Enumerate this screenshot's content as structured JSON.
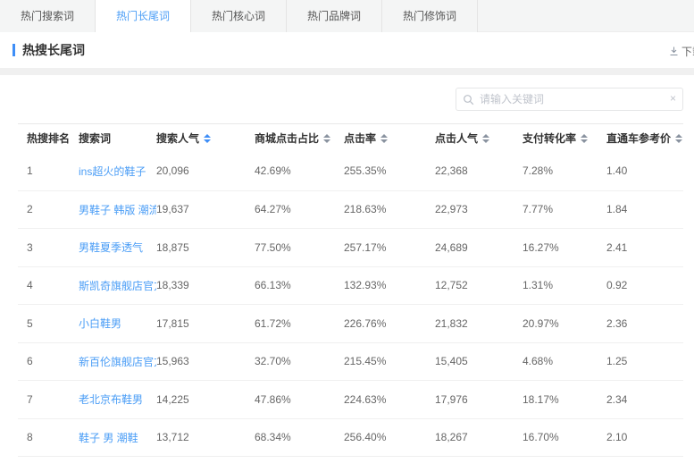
{
  "tabs": [
    {
      "label": "热门搜索词",
      "active": false
    },
    {
      "label": "热门长尾词",
      "active": true
    },
    {
      "label": "热门核心词",
      "active": false
    },
    {
      "label": "热门品牌词",
      "active": false
    },
    {
      "label": "热门修饰词",
      "active": false
    }
  ],
  "section": {
    "title": "热搜长尾词",
    "download_label": "下载"
  },
  "search": {
    "placeholder": "请输入关键词",
    "value": "",
    "clear_glyph": "×"
  },
  "icons": {
    "download": "download-arrow-icon",
    "search": "magnifier-icon",
    "clear": "clear-icon",
    "sort": "sort-carets-icon"
  },
  "colors": {
    "accent_blue": "#4a9df6",
    "marker_blue": "#3e8ef7",
    "tabbar_bg": "#f4f5f5",
    "band_gray": "#f0f0f0",
    "header_text": "#333333",
    "cell_text": "#666666"
  },
  "table": {
    "columns": [
      {
        "label": "热搜排名",
        "sortable": false,
        "sort_active": false
      },
      {
        "label": "搜索词",
        "sortable": false,
        "sort_active": false
      },
      {
        "label": "搜索人气",
        "sortable": true,
        "sort_active": true
      },
      {
        "label": "商城点击占比",
        "sortable": true,
        "sort_active": false
      },
      {
        "label": "点击率",
        "sortable": true,
        "sort_active": false
      },
      {
        "label": "点击人气",
        "sortable": true,
        "sort_active": false
      },
      {
        "label": "支付转化率",
        "sortable": true,
        "sort_active": false
      },
      {
        "label": "直通车参考价",
        "sortable": true,
        "sort_active": false
      }
    ],
    "rows": [
      {
        "rank": "1",
        "keyword": "ins超火的鞋子",
        "search_popularity": "20,096",
        "mall_click_ratio": "42.69%",
        "ctr": "255.35%",
        "click_popularity": "22,368",
        "pay_conversion": "7.28%",
        "ztc_price": "1.40"
      },
      {
        "rank": "2",
        "keyword": "男鞋子 韩版 潮流 英...",
        "search_popularity": "19,637",
        "mall_click_ratio": "64.27%",
        "ctr": "218.63%",
        "click_popularity": "22,973",
        "pay_conversion": "7.77%",
        "ztc_price": "1.84"
      },
      {
        "rank": "3",
        "keyword": "男鞋夏季透气",
        "search_popularity": "18,875",
        "mall_click_ratio": "77.50%",
        "ctr": "257.17%",
        "click_popularity": "24,689",
        "pay_conversion": "16.27%",
        "ztc_price": "2.41"
      },
      {
        "rank": "4",
        "keyword": "斯凯奇旗舰店官方旗舰",
        "search_popularity": "18,339",
        "mall_click_ratio": "66.13%",
        "ctr": "132.93%",
        "click_popularity": "12,752",
        "pay_conversion": "1.31%",
        "ztc_price": "0.92"
      },
      {
        "rank": "5",
        "keyword": "小白鞋男",
        "search_popularity": "17,815",
        "mall_click_ratio": "61.72%",
        "ctr": "226.76%",
        "click_popularity": "21,832",
        "pay_conversion": "20.97%",
        "ztc_price": "2.36"
      },
      {
        "rank": "6",
        "keyword": "新百伦旗舰店官方正品",
        "search_popularity": "15,963",
        "mall_click_ratio": "32.70%",
        "ctr": "215.45%",
        "click_popularity": "15,405",
        "pay_conversion": "4.68%",
        "ztc_price": "1.25"
      },
      {
        "rank": "7",
        "keyword": "老北京布鞋男",
        "search_popularity": "14,225",
        "mall_click_ratio": "47.86%",
        "ctr": "224.63%",
        "click_popularity": "17,976",
        "pay_conversion": "18.17%",
        "ztc_price": "2.34"
      },
      {
        "rank": "8",
        "keyword": "鞋子 男 潮鞋",
        "search_popularity": "13,712",
        "mall_click_ratio": "68.34%",
        "ctr": "256.40%",
        "click_popularity": "18,267",
        "pay_conversion": "16.70%",
        "ztc_price": "2.10"
      }
    ]
  }
}
